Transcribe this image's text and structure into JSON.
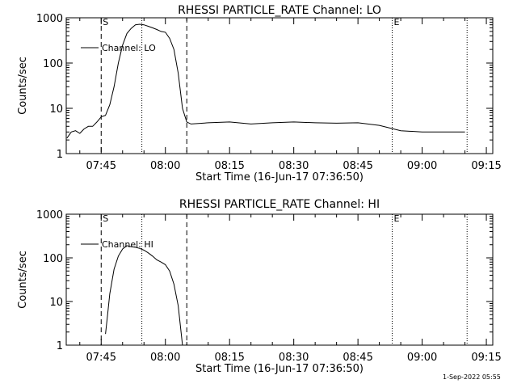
{
  "chart_data": [
    {
      "type": "line",
      "title": "RHESSI PARTICLE_RATE Channel: LO",
      "xlabel": "Start Time (16-Jun-17 07:36:50)",
      "ylabel": "Counts/sec",
      "yscale": "log",
      "ylim": [
        1,
        1000
      ],
      "xlim": [
        "07:36:50",
        "09:16:30"
      ],
      "x_ticks": [
        "07:45",
        "08:00",
        "08:15",
        "08:30",
        "08:45",
        "09:00",
        "09:15"
      ],
      "y_ticks": [
        "1",
        "10",
        "100",
        "1000"
      ],
      "legend": "top-left",
      "markers": [
        {
          "label": "S",
          "time": "07:45:00",
          "style": "dashed"
        },
        {
          "label": "",
          "time": "07:54:30",
          "style": "dotted"
        },
        {
          "label": "",
          "time": "08:05:00",
          "style": "dashed"
        },
        {
          "label": "E",
          "time": "08:53:00",
          "style": "dotted"
        },
        {
          "label": "",
          "time": "09:10:30",
          "style": "dotted"
        }
      ],
      "series": [
        {
          "name": "Channel: LO",
          "x": [
            "07:37:00",
            "07:38:00",
            "07:39:00",
            "07:40:00",
            "07:41:00",
            "07:42:00",
            "07:43:00",
            "07:44:00",
            "07:45:00",
            "07:46:00",
            "07:47:00",
            "07:48:00",
            "07:49:00",
            "07:50:00",
            "07:51:00",
            "07:52:00",
            "07:53:00",
            "07:54:00",
            "07:55:00",
            "07:56:00",
            "07:57:00",
            "07:58:00",
            "07:59:00",
            "08:00:00",
            "08:01:00",
            "08:02:00",
            "08:03:00",
            "08:04:00",
            "08:05:00",
            "08:06:00",
            "08:10:00",
            "08:15:00",
            "08:20:00",
            "08:25:00",
            "08:30:00",
            "08:35:00",
            "08:40:00",
            "08:45:00",
            "08:50:00",
            "08:55:00",
            "09:00:00",
            "09:05:00",
            "09:10:00"
          ],
          "y": [
            2.2,
            3,
            3.2,
            2.8,
            3.5,
            4,
            4,
            5,
            6.5,
            7,
            12,
            30,
            100,
            250,
            450,
            580,
            700,
            720,
            700,
            650,
            600,
            550,
            500,
            480,
            350,
            200,
            60,
            10,
            5,
            4.5,
            4.8,
            5,
            4.5,
            4.8,
            5,
            4.8,
            4.7,
            4.8,
            4.2,
            3.2,
            3,
            3,
            3
          ]
        }
      ]
    },
    {
      "type": "line",
      "title": "RHESSI PARTICLE_RATE Channel: HI",
      "xlabel": "Start Time (16-Jun-17 07:36:50)",
      "ylabel": "Counts/sec",
      "yscale": "log",
      "ylim": [
        1,
        1000
      ],
      "xlim": [
        "07:36:50",
        "09:16:30"
      ],
      "x_ticks": [
        "07:45",
        "08:00",
        "08:15",
        "08:30",
        "08:45",
        "09:00",
        "09:15"
      ],
      "y_ticks": [
        "1",
        "10",
        "100",
        "1000"
      ],
      "legend": "top-left",
      "markers": [
        {
          "label": "S",
          "time": "07:45:00",
          "style": "dashed"
        },
        {
          "label": "",
          "time": "07:54:30",
          "style": "dotted"
        },
        {
          "label": "",
          "time": "08:05:00",
          "style": "dashed"
        },
        {
          "label": "E",
          "time": "08:53:00",
          "style": "dotted"
        },
        {
          "label": "",
          "time": "09:10:30",
          "style": "dotted"
        }
      ],
      "series": [
        {
          "name": "Channel: HI",
          "x": [
            "07:46:00",
            "07:46:30",
            "07:47:00",
            "07:48:00",
            "07:49:00",
            "07:50:00",
            "07:51:00",
            "07:52:00",
            "07:53:00",
            "07:54:00",
            "07:55:00",
            "07:56:00",
            "07:57:00",
            "07:58:00",
            "07:59:00",
            "08:00:00",
            "08:01:00",
            "08:02:00",
            "08:03:00",
            "08:04:00"
          ],
          "y": [
            1.8,
            5,
            15,
            55,
            110,
            160,
            190,
            180,
            175,
            165,
            150,
            130,
            110,
            90,
            80,
            70,
            50,
            25,
            8,
            1
          ]
        }
      ]
    }
  ],
  "timestamp": "1-Sep-2022 05:55",
  "colors": {
    "background": "#ffffff",
    "foreground": "#000000"
  }
}
